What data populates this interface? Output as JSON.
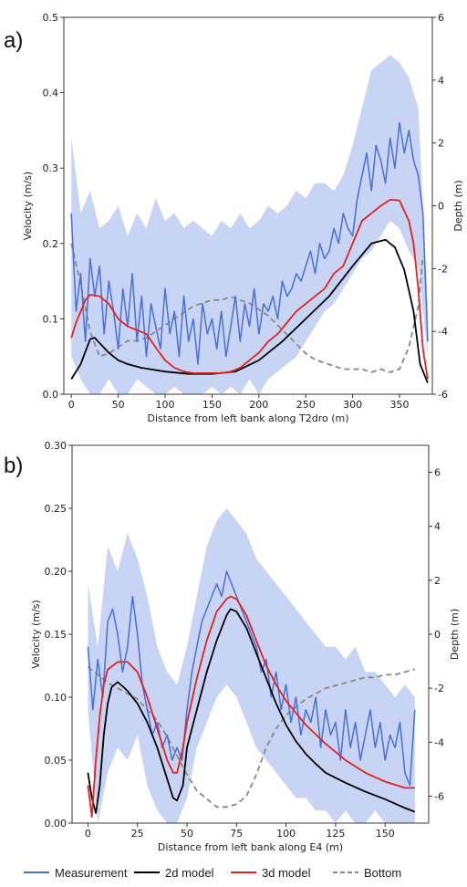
{
  "chart_data": [
    {
      "type": "line",
      "panel_label": "a)",
      "xlabel": "Distance from left bank along T2dro (m)",
      "ylabel": "Velocity (m/s)",
      "y2label": "Depth (m)",
      "xlim": [
        -8,
        385
      ],
      "ylim": [
        0,
        0.5
      ],
      "y2lim": [
        -6,
        6
      ],
      "xticks": [
        0,
        50,
        100,
        150,
        200,
        250,
        300,
        350
      ],
      "yticks": [
        0.0,
        0.1,
        0.2,
        0.3,
        0.4,
        0.5
      ],
      "y2ticks": [
        -6,
        -4,
        -2,
        0,
        2,
        4,
        6
      ],
      "band": {
        "name": "Measurement",
        "x": [
          0,
          10,
          20,
          30,
          40,
          50,
          60,
          70,
          80,
          90,
          100,
          110,
          120,
          130,
          140,
          150,
          160,
          170,
          180,
          190,
          200,
          210,
          220,
          230,
          240,
          250,
          260,
          270,
          280,
          290,
          300,
          310,
          320,
          330,
          340,
          350,
          360,
          370,
          380
        ],
        "upper": [
          0.34,
          0.24,
          0.27,
          0.22,
          0.23,
          0.25,
          0.21,
          0.24,
          0.22,
          0.26,
          0.23,
          0.24,
          0.22,
          0.23,
          0.22,
          0.21,
          0.23,
          0.22,
          0.24,
          0.22,
          0.23,
          0.25,
          0.24,
          0.25,
          0.27,
          0.26,
          0.28,
          0.28,
          0.27,
          0.29,
          0.33,
          0.38,
          0.43,
          0.44,
          0.45,
          0.44,
          0.42,
          0.38,
          0.12
        ],
        "lower": [
          0.05,
          0.02,
          0.0,
          0.0,
          0.02,
          0.0,
          0.0,
          0.02,
          0.01,
          0.0,
          0.0,
          0.01,
          0.0,
          0.0,
          0.0,
          0.01,
          0.0,
          0.01,
          0.0,
          0.02,
          0.0,
          0.02,
          0.03,
          0.04,
          0.05,
          0.07,
          0.09,
          0.11,
          0.12,
          0.14,
          0.16,
          0.18,
          0.19,
          0.21,
          0.23,
          0.22,
          0.19,
          0.17,
          0.05
        ]
      },
      "series": [
        {
          "name": "Measurement",
          "x": [
            0,
            5,
            10,
            15,
            20,
            25,
            30,
            35,
            40,
            45,
            50,
            55,
            60,
            65,
            70,
            75,
            80,
            85,
            90,
            95,
            100,
            105,
            110,
            115,
            120,
            125,
            130,
            135,
            140,
            145,
            150,
            155,
            160,
            165,
            170,
            175,
            180,
            185,
            190,
            195,
            200,
            205,
            210,
            215,
            220,
            225,
            230,
            235,
            240,
            245,
            250,
            255,
            260,
            265,
            270,
            275,
            280,
            285,
            290,
            295,
            300,
            305,
            310,
            315,
            320,
            325,
            330,
            335,
            340,
            345,
            350,
            355,
            360,
            365,
            370,
            375,
            380
          ],
          "values": [
            0.24,
            0.11,
            0.16,
            0.07,
            0.18,
            0.13,
            0.17,
            0.08,
            0.15,
            0.11,
            0.06,
            0.14,
            0.09,
            0.16,
            0.07,
            0.13,
            0.05,
            0.12,
            0.09,
            0.06,
            0.14,
            0.08,
            0.11,
            0.05,
            0.13,
            0.07,
            0.1,
            0.04,
            0.12,
            0.08,
            0.1,
            0.06,
            0.11,
            0.05,
            0.09,
            0.13,
            0.07,
            0.12,
            0.09,
            0.14,
            0.08,
            0.12,
            0.11,
            0.13,
            0.1,
            0.15,
            0.13,
            0.14,
            0.16,
            0.15,
            0.17,
            0.19,
            0.16,
            0.2,
            0.18,
            0.19,
            0.22,
            0.2,
            0.24,
            0.22,
            0.21,
            0.26,
            0.29,
            0.32,
            0.27,
            0.33,
            0.31,
            0.28,
            0.34,
            0.3,
            0.36,
            0.32,
            0.35,
            0.31,
            0.29,
            0.24,
            0.07
          ],
          "color": "#4a6fd6"
        },
        {
          "name": "2d model",
          "x": [
            0,
            10,
            20,
            25,
            30,
            40,
            50,
            60,
            75,
            100,
            125,
            150,
            175,
            200,
            225,
            250,
            275,
            300,
            320,
            335,
            345,
            355,
            365,
            372,
            380
          ],
          "values": [
            0.02,
            0.04,
            0.073,
            0.075,
            0.068,
            0.055,
            0.045,
            0.04,
            0.035,
            0.03,
            0.027,
            0.027,
            0.03,
            0.045,
            0.07,
            0.1,
            0.13,
            0.17,
            0.2,
            0.205,
            0.195,
            0.165,
            0.11,
            0.04,
            0.015
          ],
          "color": "#000000"
        },
        {
          "name": "3d model",
          "x": [
            0,
            5,
            10,
            15,
            20,
            30,
            40,
            50,
            60,
            70,
            80,
            90,
            100,
            110,
            120,
            130,
            140,
            150,
            160,
            170,
            180,
            190,
            200,
            210,
            220,
            230,
            240,
            250,
            260,
            270,
            280,
            290,
            300,
            310,
            320,
            330,
            340,
            350,
            360,
            365,
            370,
            375,
            380
          ],
          "values": [
            0.075,
            0.095,
            0.11,
            0.125,
            0.132,
            0.13,
            0.12,
            0.1,
            0.09,
            0.085,
            0.08,
            0.062,
            0.045,
            0.035,
            0.03,
            0.028,
            0.028,
            0.028,
            0.028,
            0.03,
            0.035,
            0.045,
            0.055,
            0.07,
            0.08,
            0.095,
            0.11,
            0.12,
            0.13,
            0.14,
            0.16,
            0.17,
            0.2,
            0.23,
            0.24,
            0.25,
            0.258,
            0.257,
            0.23,
            0.2,
            0.14,
            0.06,
            0.02
          ],
          "color": "#e32222"
        },
        {
          "name": "Bottom",
          "axis": "right",
          "x": [
            0,
            10,
            20,
            30,
            40,
            50,
            60,
            70,
            80,
            90,
            100,
            110,
            120,
            130,
            140,
            150,
            160,
            170,
            180,
            190,
            200,
            210,
            220,
            230,
            240,
            250,
            260,
            270,
            280,
            290,
            300,
            310,
            320,
            330,
            340,
            350,
            360,
            370,
            375
          ],
          "values": [
            -1.2,
            -2.5,
            -4.0,
            -4.8,
            -4.7,
            -4.5,
            -4.3,
            -4.3,
            -4.2,
            -4.0,
            -3.8,
            -3.6,
            -3.4,
            -3.2,
            -3.1,
            -3.0,
            -3.0,
            -2.9,
            -3.0,
            -3.1,
            -3.3,
            -3.5,
            -3.8,
            -4.1,
            -4.4,
            -4.7,
            -4.9,
            -5.0,
            -5.1,
            -5.2,
            -5.2,
            -5.2,
            -5.3,
            -5.2,
            -5.3,
            -5.2,
            -4.5,
            -3.2,
            -1.6
          ],
          "color": "#888888",
          "dashed": true
        }
      ]
    },
    {
      "type": "line",
      "panel_label": "b)",
      "xlabel": "Distance from left bank along E4 (m)",
      "ylabel": "Velocity (m/s)",
      "y2label": "Depth (m)",
      "xlim": [
        -8,
        172
      ],
      "ylim": [
        0,
        0.3
      ],
      "y2lim": [
        -7,
        7
      ],
      "xticks": [
        0,
        25,
        50,
        75,
        100,
        125,
        150
      ],
      "yticks": [
        0.0,
        0.05,
        0.1,
        0.15,
        0.2,
        0.25,
        0.3
      ],
      "y2ticks": [
        -6,
        -4,
        -2,
        0,
        2,
        4,
        6
      ],
      "band": {
        "name": "Measurement",
        "x": [
          0,
          5,
          10,
          15,
          20,
          25,
          30,
          35,
          40,
          45,
          50,
          55,
          60,
          65,
          70,
          75,
          80,
          85,
          90,
          95,
          100,
          105,
          110,
          115,
          120,
          125,
          130,
          135,
          140,
          145,
          150,
          155,
          160,
          165
        ],
        "upper": [
          0.19,
          0.14,
          0.22,
          0.2,
          0.23,
          0.21,
          0.18,
          0.14,
          0.12,
          0.11,
          0.14,
          0.18,
          0.22,
          0.24,
          0.25,
          0.24,
          0.23,
          0.21,
          0.2,
          0.19,
          0.18,
          0.17,
          0.16,
          0.15,
          0.14,
          0.14,
          0.13,
          0.14,
          0.12,
          0.12,
          0.11,
          0.1,
          0.11,
          0.1
        ],
        "lower": [
          0.09,
          0.0,
          0.04,
          0.06,
          0.05,
          0.07,
          0.03,
          0.01,
          0.0,
          0.0,
          0.02,
          0.06,
          0.08,
          0.1,
          0.11,
          0.1,
          0.08,
          0.06,
          0.05,
          0.04,
          0.03,
          0.02,
          0.02,
          0.01,
          0.01,
          0.0,
          0.01,
          0.0,
          0.0,
          0.01,
          0.0,
          0.0,
          0.0,
          0.0
        ]
      },
      "series": [
        {
          "name": "Measurement",
          "x": [
            0,
            2.5,
            5,
            7.5,
            10,
            12.5,
            15,
            17.5,
            20,
            22.5,
            25,
            27.5,
            30,
            32.5,
            35,
            37.5,
            40,
            42.5,
            45,
            47.5,
            50,
            52.5,
            55,
            57.5,
            60,
            62.5,
            65,
            67.5,
            70,
            72.5,
            75,
            77.5,
            80,
            82.5,
            85,
            87.5,
            90,
            92.5,
            95,
            97.5,
            100,
            102.5,
            105,
            107.5,
            110,
            112.5,
            115,
            117.5,
            120,
            122.5,
            125,
            127.5,
            130,
            132.5,
            135,
            137.5,
            140,
            142.5,
            145,
            147.5,
            150,
            152.5,
            155,
            157.5,
            160,
            162.5,
            165
          ],
          "values": [
            0.14,
            0.09,
            0.13,
            0.1,
            0.16,
            0.17,
            0.15,
            0.12,
            0.14,
            0.18,
            0.15,
            0.11,
            0.09,
            0.07,
            0.08,
            0.06,
            0.07,
            0.05,
            0.06,
            0.05,
            0.09,
            0.12,
            0.14,
            0.16,
            0.17,
            0.18,
            0.19,
            0.18,
            0.2,
            0.19,
            0.18,
            0.17,
            0.16,
            0.15,
            0.14,
            0.12,
            0.13,
            0.1,
            0.12,
            0.09,
            0.11,
            0.08,
            0.1,
            0.07,
            0.09,
            0.08,
            0.1,
            0.06,
            0.09,
            0.07,
            0.08,
            0.05,
            0.09,
            0.06,
            0.08,
            0.05,
            0.07,
            0.09,
            0.06,
            0.08,
            0.05,
            0.07,
            0.06,
            0.08,
            0.04,
            0.03,
            0.09
          ],
          "color": "#4a6fd6"
        },
        {
          "name": "2d model",
          "x": [
            0,
            2,
            4,
            6,
            8,
            10,
            12,
            15,
            18,
            20,
            25,
            30,
            35,
            40,
            43,
            45,
            48,
            50,
            55,
            60,
            65,
            70,
            72,
            75,
            80,
            85,
            90,
            95,
            100,
            105,
            110,
            115,
            120,
            130,
            140,
            150,
            160,
            165
          ],
          "values": [
            0.04,
            0.02,
            0.008,
            0.03,
            0.07,
            0.095,
            0.108,
            0.112,
            0.108,
            0.105,
            0.095,
            0.08,
            0.06,
            0.035,
            0.02,
            0.018,
            0.03,
            0.06,
            0.09,
            0.12,
            0.145,
            0.165,
            0.17,
            0.168,
            0.155,
            0.135,
            0.115,
            0.095,
            0.078,
            0.065,
            0.055,
            0.047,
            0.04,
            0.032,
            0.025,
            0.019,
            0.012,
            0.009
          ],
          "color": "#000000"
        },
        {
          "name": "3d model",
          "x": [
            0,
            2,
            4,
            6,
            8,
            10,
            15,
            20,
            25,
            30,
            35,
            40,
            43,
            45,
            48,
            50,
            55,
            60,
            65,
            70,
            72,
            75,
            80,
            85,
            90,
            95,
            100,
            110,
            120,
            130,
            140,
            150,
            160,
            165
          ],
          "values": [
            0.03,
            0.005,
            0.05,
            0.085,
            0.11,
            0.122,
            0.128,
            0.128,
            0.12,
            0.1,
            0.075,
            0.05,
            0.04,
            0.04,
            0.06,
            0.08,
            0.115,
            0.145,
            0.168,
            0.178,
            0.18,
            0.178,
            0.165,
            0.145,
            0.125,
            0.11,
            0.097,
            0.078,
            0.063,
            0.05,
            0.04,
            0.033,
            0.028,
            0.028
          ],
          "color": "#e32222"
        },
        {
          "name": "Bottom",
          "axis": "right",
          "x": [
            0,
            5,
            10,
            15,
            20,
            25,
            30,
            35,
            40,
            45,
            50,
            55,
            60,
            65,
            70,
            75,
            80,
            85,
            90,
            95,
            100,
            105,
            110,
            115,
            120,
            125,
            130,
            135,
            140,
            145,
            150,
            155,
            160,
            165
          ],
          "values": [
            -1.2,
            -1.5,
            -1.8,
            -2.0,
            -2.2,
            -2.4,
            -2.8,
            -3.2,
            -3.8,
            -4.5,
            -5.2,
            -5.8,
            -6.1,
            -6.4,
            -6.4,
            -6.3,
            -6.0,
            -5.2,
            -4.2,
            -3.5,
            -3.0,
            -2.7,
            -2.4,
            -2.2,
            -2.0,
            -1.9,
            -1.8,
            -1.7,
            -1.6,
            -1.6,
            -1.5,
            -1.5,
            -1.4,
            -1.3
          ],
          "color": "#888888",
          "dashed": true
        }
      ]
    }
  ],
  "legend": {
    "placement": "bottom",
    "items": [
      {
        "label": "Measurement",
        "color": "#4a6fd6",
        "dashed": false
      },
      {
        "label": "2d model",
        "color": "#000000",
        "dashed": false
      },
      {
        "label": "3d model",
        "color": "#e32222",
        "dashed": false
      },
      {
        "label": "Bottom",
        "color": "#888888",
        "dashed": true
      }
    ]
  }
}
